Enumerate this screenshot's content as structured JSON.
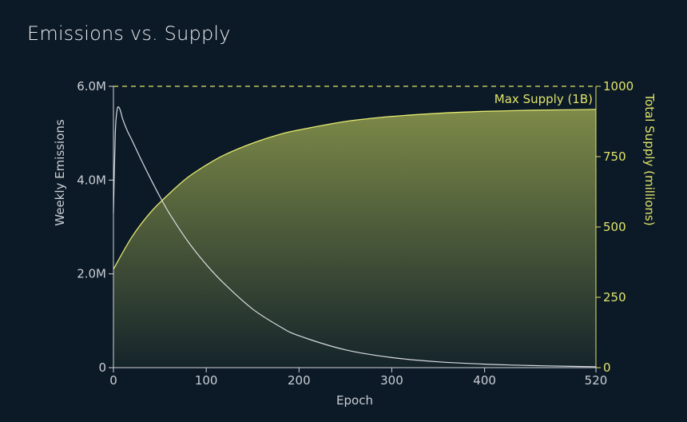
{
  "chart_title": "Emissions vs. Supply",
  "colors": {
    "background": "#0c1a27",
    "emissions_line": "#d8dbe0",
    "supply_line": "#e6ea6f",
    "left_axis": "#d0d4da",
    "right_axis": "#dfe36a",
    "area_top": "#7d8a48",
    "area_bottom": "#15242a"
  },
  "chart_data": {
    "type": "line",
    "title": "Emissions vs. Supply",
    "xlabel": "Epoch",
    "ylabel_left": "Weekly Emissions",
    "ylabel_right": "Total Supply (millions)",
    "xlim": [
      0,
      520
    ],
    "ylim_left": [
      0,
      6000000
    ],
    "ylim_right": [
      0,
      1000
    ],
    "x_ticks": [
      0,
      100,
      200,
      300,
      400,
      520
    ],
    "x_tick_labels": [
      "0",
      "100",
      "200",
      "300",
      "400",
      "520"
    ],
    "y_left_ticks": [
      0,
      2000000,
      4000000,
      6000000
    ],
    "y_left_tick_labels": [
      "0",
      "2.0M",
      "4.0M",
      "6.0M"
    ],
    "y_right_ticks": [
      0,
      250,
      500,
      750,
      1000
    ],
    "y_right_tick_labels": [
      "0",
      "250",
      "500",
      "750",
      "1000"
    ],
    "reference_line": {
      "axis": "right",
      "value": 1000,
      "label": "Max Supply (1B)",
      "style": "dashed"
    },
    "grid": false,
    "legend": "none",
    "series": [
      {
        "name": "Weekly Emissions",
        "axis": "left",
        "x": [
          0,
          2,
          4,
          6,
          8,
          10,
          15,
          20,
          30,
          40,
          50,
          60,
          80,
          100,
          120,
          150,
          180,
          200,
          250,
          300,
          350,
          400,
          450,
          500,
          520
        ],
        "y": [
          3300000,
          5000000,
          5500000,
          5550000,
          5450000,
          5300000,
          5050000,
          4850000,
          4430000,
          4030000,
          3650000,
          3300000,
          2700000,
          2200000,
          1780000,
          1250000,
          870000,
          680000,
          380000,
          215000,
          125000,
          75000,
          45000,
          25000,
          20000
        ]
      },
      {
        "name": "Total Supply",
        "axis": "right",
        "x": [
          0,
          20,
          40,
          60,
          80,
          100,
          120,
          150,
          180,
          200,
          250,
          300,
          350,
          400,
          450,
          500,
          520
        ],
        "y": [
          350,
          465,
          552,
          618,
          676,
          720,
          757,
          798,
          830,
          845,
          875,
          893,
          904,
          911,
          915,
          917,
          918
        ],
        "fill": "area"
      }
    ]
  }
}
